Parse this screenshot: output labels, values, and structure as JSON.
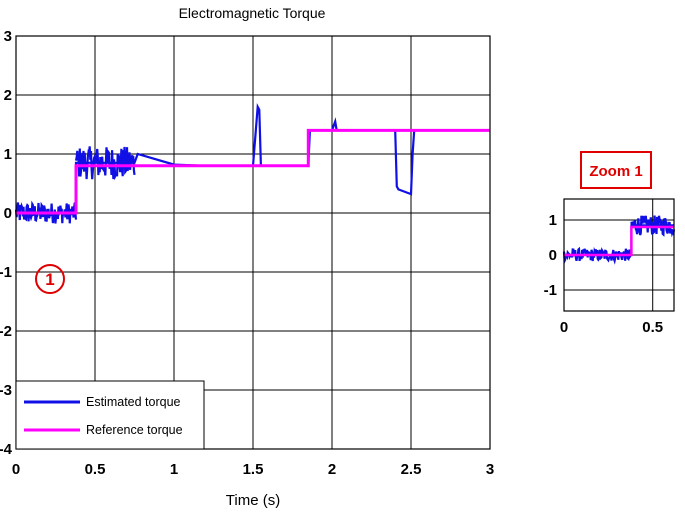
{
  "chart_data": [
    {
      "type": "line",
      "title": "Electromagnetic Torque",
      "xlabel": "Time (s)",
      "ylabel": "",
      "xlim": [
        0,
        3
      ],
      "ylim": [
        -4,
        3
      ],
      "x_ticks": [
        "0",
        "0.5",
        "1",
        "1.5",
        "2",
        "2.5",
        "3"
      ],
      "y_ticks": [
        "-4",
        "-3",
        "-2",
        "-1",
        "0",
        "1",
        "2",
        "3"
      ],
      "grid": true,
      "legend_position": "bottom-left",
      "series": [
        {
          "name": "Estimated torque",
          "color": "#1010e6",
          "x": [
            0,
            0.38,
            0.38,
            0.75,
            0.77,
            1.0,
            1.2,
            1.5,
            1.53,
            1.54,
            1.55,
            1.6,
            1.85,
            1.86,
            2.0,
            2.02,
            2.03,
            2.1,
            2.4,
            2.41,
            2.42,
            2.5,
            2.51,
            2.52,
            3.0
          ],
          "y": [
            0,
            0,
            0.85,
            0.85,
            1.0,
            0.82,
            0.8,
            0.8,
            1.8,
            1.75,
            0.8,
            0.8,
            0.8,
            1.4,
            1.4,
            1.55,
            1.4,
            1.4,
            1.4,
            0.45,
            0.4,
            0.32,
            1.0,
            1.4,
            1.4
          ],
          "noise_bands": [
            {
              "x_start": 0,
              "x_end": 0.38,
              "amplitude": 0.18
            },
            {
              "x_start": 0.38,
              "x_end": 0.75,
              "amplitude": 0.28
            }
          ]
        },
        {
          "name": "Reference torque",
          "color": "#ff00ff",
          "x": [
            0,
            0.38,
            0.38,
            1.85,
            1.85,
            3.0
          ],
          "y": [
            0,
            0,
            0.8,
            0.8,
            1.4,
            1.4
          ]
        }
      ],
      "annotations": [
        {
          "label": "1",
          "x": 0.22,
          "y": -1.15
        }
      ]
    },
    {
      "type": "line",
      "title": "Zoom 1",
      "xlabel": "",
      "ylabel": "",
      "xlim": [
        0,
        0.62
      ],
      "ylim": [
        -1.6,
        1.6
      ],
      "x_ticks": [
        "0",
        "0.5"
      ],
      "y_ticks": [
        "-1",
        "0",
        "1"
      ],
      "grid": true,
      "series": [
        {
          "name": "Estimated torque",
          "color": "#1010e6",
          "x": [
            0,
            0.38,
            0.38,
            0.62
          ],
          "y": [
            0,
            0,
            0.85,
            0.85
          ],
          "noise_bands": [
            {
              "x_start": 0,
              "x_end": 0.38,
              "amplitude": 0.18
            },
            {
              "x_start": 0.38,
              "x_end": 0.62,
              "amplitude": 0.28
            }
          ]
        },
        {
          "name": "Reference torque",
          "color": "#ff00ff",
          "x": [
            0,
            0.38,
            0.38,
            0.62
          ],
          "y": [
            0,
            0,
            0.8,
            0.8
          ]
        }
      ]
    }
  ]
}
